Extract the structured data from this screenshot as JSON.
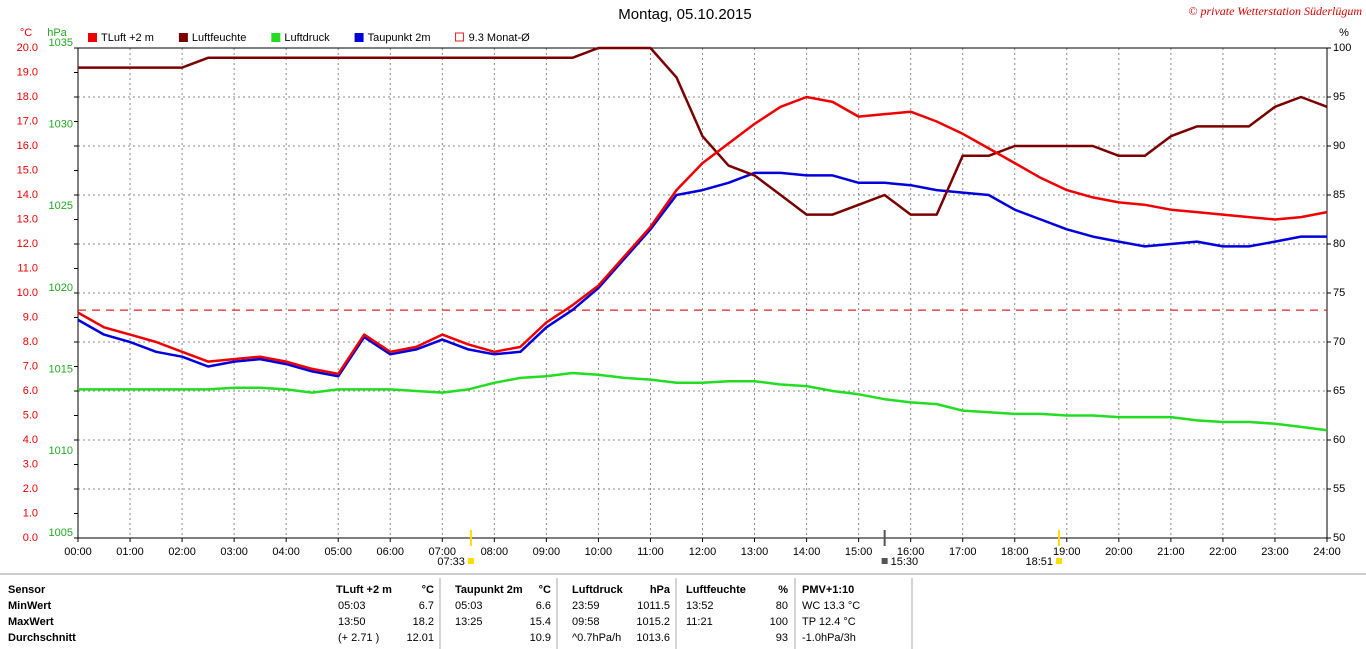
{
  "chart_data": {
    "type": "line",
    "title": "Montag, 05.10.2015",
    "credit": "© private Wetterstation Süderlügum",
    "ylabel": "°C",
    "y3label": "hPa",
    "y2label": "%",
    "x": [
      0,
      0.5,
      1,
      1.5,
      2,
      2.5,
      3,
      3.5,
      4,
      4.5,
      5,
      5.5,
      6,
      6.5,
      7,
      7.5,
      8,
      8.5,
      9,
      9.5,
      10,
      10.5,
      11,
      11.5,
      12,
      12.5,
      13,
      13.5,
      14,
      14.5,
      15,
      15.5,
      16,
      16.5,
      17,
      17.5,
      18,
      18.5,
      19,
      19.5,
      20,
      20.5,
      21,
      21.5,
      22,
      22.5,
      23,
      23.5,
      24
    ],
    "xlim": [
      0,
      24
    ],
    "xticks": [
      {
        "value": 0,
        "label": "00:00"
      },
      {
        "value": 1,
        "label": "01:00"
      },
      {
        "value": 2,
        "label": "02:00"
      },
      {
        "value": 3,
        "label": "03:00"
      },
      {
        "value": 4,
        "label": "04:00"
      },
      {
        "value": 5,
        "label": "05:00"
      },
      {
        "value": 6,
        "label": "06:00"
      },
      {
        "value": 7,
        "label": "07:00"
      },
      {
        "value": 8,
        "label": "08:00"
      },
      {
        "value": 9,
        "label": "09:00"
      },
      {
        "value": 10,
        "label": "10:00"
      },
      {
        "value": 11,
        "label": "11:00"
      },
      {
        "value": 12,
        "label": "12:00"
      },
      {
        "value": 13,
        "label": "13:00"
      },
      {
        "value": 14,
        "label": "14:00"
      },
      {
        "value": 15,
        "label": "15:00"
      },
      {
        "value": 16,
        "label": "16:00"
      },
      {
        "value": 17,
        "label": "17:00"
      },
      {
        "value": 18,
        "label": "18:00"
      },
      {
        "value": 19,
        "label": "19:00"
      },
      {
        "value": 20,
        "label": "20:00"
      },
      {
        "value": 21,
        "label": "21:00"
      },
      {
        "value": 22,
        "label": "22:00"
      },
      {
        "value": 23,
        "label": "23:00"
      },
      {
        "value": 24,
        "label": "24:00"
      }
    ],
    "ylim": [
      0,
      20
    ],
    "yticks": [
      {
        "value": 0,
        "label": "0.0"
      },
      {
        "value": 1,
        "label": "1.0"
      },
      {
        "value": 2,
        "label": "2.0"
      },
      {
        "value": 3,
        "label": "3.0"
      },
      {
        "value": 4,
        "label": "4.0"
      },
      {
        "value": 5,
        "label": "5.0"
      },
      {
        "value": 6,
        "label": "6.0"
      },
      {
        "value": 7,
        "label": "7.0"
      },
      {
        "value": 8,
        "label": "8.0"
      },
      {
        "value": 9,
        "label": "9.0"
      },
      {
        "value": 10,
        "label": "10.0"
      },
      {
        "value": 11,
        "label": "11.0"
      },
      {
        "value": 12,
        "label": "12.0"
      },
      {
        "value": 13,
        "label": "13.0"
      },
      {
        "value": 14,
        "label": "14.0"
      },
      {
        "value": 15,
        "label": "15.0"
      },
      {
        "value": 16,
        "label": "16.0"
      },
      {
        "value": 17,
        "label": "17.0"
      },
      {
        "value": 18,
        "label": "18.0"
      },
      {
        "value": 19,
        "label": "19.0"
      },
      {
        "value": 20,
        "label": "20.0"
      }
    ],
    "y3lim": [
      1005,
      1035
    ],
    "y3ticks": [
      1005,
      1010,
      1015,
      1020,
      1025,
      1030,
      1035
    ],
    "y2lim": [
      50,
      100
    ],
    "y2ticks": [
      50,
      55,
      60,
      65,
      70,
      75,
      80,
      85,
      90,
      95,
      100
    ],
    "grid": true,
    "series": [
      {
        "name": "TLuft +2 m",
        "color": "#ee0000",
        "axis": "y",
        "values": [
          9.2,
          8.6,
          8.3,
          8.0,
          7.6,
          7.2,
          7.3,
          7.4,
          7.2,
          6.9,
          6.7,
          8.3,
          7.6,
          7.8,
          8.3,
          7.9,
          7.6,
          7.8,
          8.8,
          9.5,
          10.3,
          11.5,
          12.7,
          14.2,
          15.3,
          16.1,
          16.9,
          17.6,
          18.0,
          17.8,
          17.2,
          17.3,
          17.4,
          17.0,
          16.5,
          15.9,
          15.3,
          14.7,
          14.2,
          13.9,
          13.7,
          13.6,
          13.4,
          13.3,
          13.2,
          13.1,
          13.0,
          13.1,
          13.3
        ]
      },
      {
        "name": "Luftfeuchte",
        "color": "#7a0000",
        "axis": "y2",
        "values": [
          98,
          98,
          98,
          98,
          98,
          99,
          99,
          99,
          99,
          99,
          99,
          99,
          99,
          99,
          99,
          99,
          99,
          99,
          99,
          99,
          100,
          100,
          100,
          97,
          91,
          88,
          87,
          85,
          83,
          83,
          84,
          85,
          83,
          83,
          89,
          89,
          90,
          90,
          90,
          90,
          89,
          89,
          91,
          92,
          92,
          92,
          94,
          95,
          94
        ]
      },
      {
        "name": "Luftdruck",
        "color": "#22dd22",
        "axis": "y3",
        "values": [
          1014.1,
          1014.1,
          1014.1,
          1014.1,
          1014.1,
          1014.1,
          1014.2,
          1014.2,
          1014.1,
          1013.9,
          1014.1,
          1014.1,
          1014.1,
          1014.0,
          1013.9,
          1014.1,
          1014.5,
          1014.8,
          1014.9,
          1015.1,
          1015.0,
          1014.8,
          1014.7,
          1014.5,
          1014.5,
          1014.6,
          1014.6,
          1014.4,
          1014.3,
          1014.0,
          1013.8,
          1013.5,
          1013.3,
          1013.2,
          1012.8,
          1012.7,
          1012.6,
          1012.6,
          1012.5,
          1012.5,
          1012.4,
          1012.4,
          1012.4,
          1012.2,
          1012.1,
          1012.1,
          1012.0,
          1011.8,
          1011.6
        ]
      },
      {
        "name": "Taupunkt 2m",
        "color": "#0000dd",
        "axis": "y",
        "values": [
          8.9,
          8.3,
          8.0,
          7.6,
          7.4,
          7.0,
          7.2,
          7.3,
          7.1,
          6.8,
          6.6,
          8.2,
          7.5,
          7.7,
          8.1,
          7.7,
          7.5,
          7.6,
          8.6,
          9.3,
          10.2,
          11.4,
          12.6,
          14.0,
          14.2,
          14.5,
          14.9,
          14.9,
          14.8,
          14.8,
          14.5,
          14.5,
          14.4,
          14.2,
          14.1,
          14.0,
          13.4,
          13.0,
          12.6,
          12.3,
          12.1,
          11.9,
          12.0,
          12.1,
          11.9,
          11.9,
          12.1,
          12.3,
          12.3
        ]
      }
    ],
    "reference_line": {
      "name": "9.3 Monat-Ø",
      "value": 9.3,
      "color": "#dd2222"
    },
    "annotations": [
      {
        "label": "07:33",
        "x": 7.55,
        "color": "#ffdd00"
      },
      {
        "label": "15:30",
        "x": 15.5,
        "color": "#555555"
      },
      {
        "label": "18:51",
        "x": 18.85,
        "color": "#ffdd00"
      }
    ]
  },
  "table": {
    "header": [
      "Sensor",
      "TLuft +2 m",
      "°C",
      "Taupunkt 2m",
      "°C",
      "Luftdruck",
      "hPa",
      "Luftfeuchte",
      "%",
      "PMV+1:10"
    ],
    "rows": [
      [
        "MinWert",
        "05:03",
        "6.7",
        "05:03",
        "6.6",
        "23:59",
        "1011.5",
        "13:52",
        "80",
        "WC 13.3 °C"
      ],
      [
        "MaxWert",
        "13:50",
        "18.2",
        "13:25",
        "15.4",
        "09:58",
        "1015.2",
        "11:21",
        "100",
        "TP 12.4 °C"
      ],
      [
        "Durchschnitt",
        "(+ 2.71 )",
        "12.01",
        null,
        "10.9",
        "^0.7hPa/h",
        "1013.6",
        null,
        "93",
        "-1.0hPa/3h"
      ]
    ]
  }
}
